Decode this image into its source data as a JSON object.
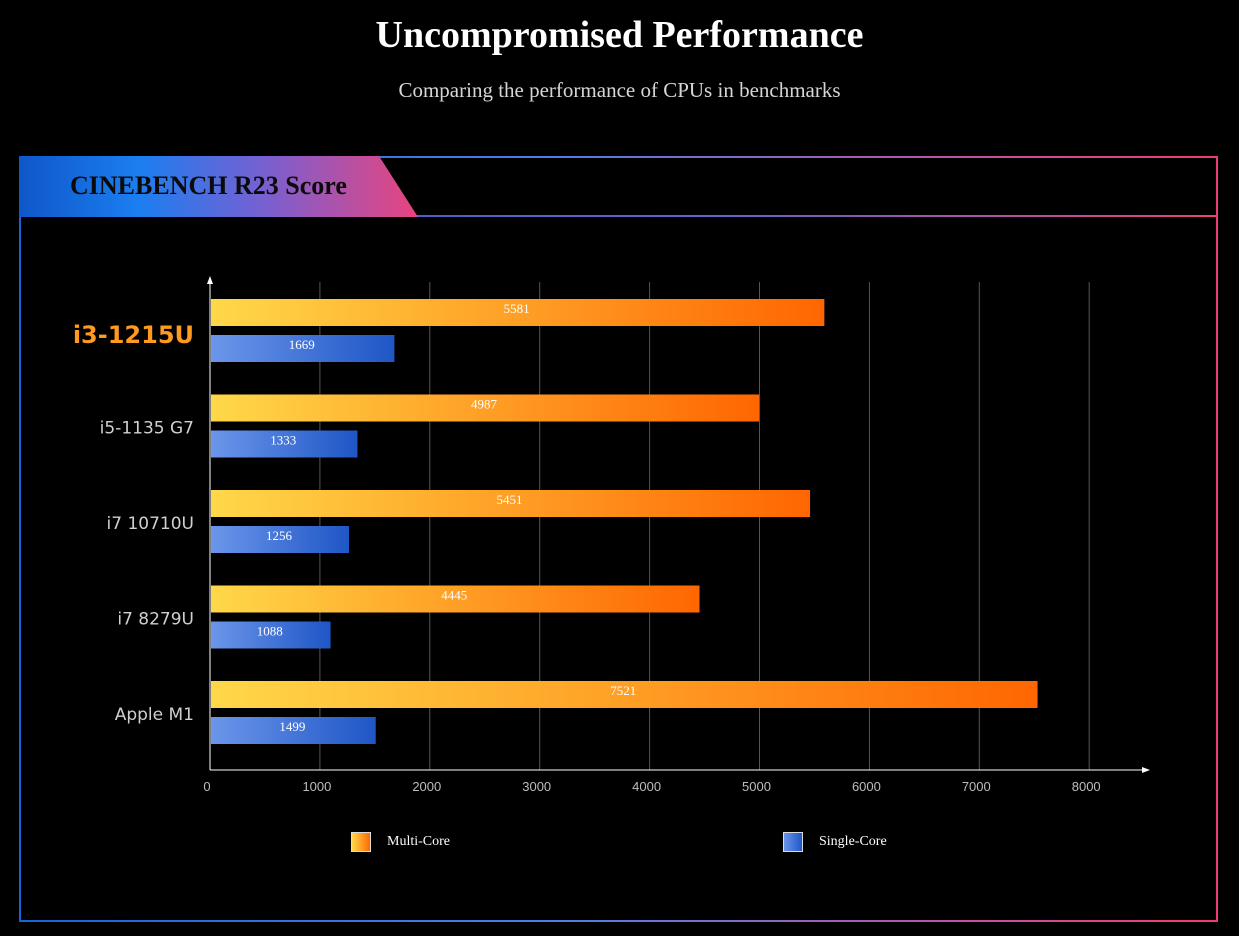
{
  "header": {
    "title": "Uncompromised Performance",
    "subtitle": "Comparing the performance of CPUs in benchmarks"
  },
  "section": {
    "title": "CINEBENCH R23 Score"
  },
  "chart_data": {
    "type": "bar",
    "orientation": "horizontal",
    "title": "CINEBENCH R23 Score",
    "categories": [
      "i3-1215U",
      "i5-1135 G7",
      "i7 10710U",
      "i7 8279U",
      "Apple M1"
    ],
    "highlight_category": "i3-1215U",
    "series": [
      {
        "name": "Multi-Core",
        "values": [
          5581,
          4987,
          5451,
          4445,
          7521
        ],
        "color_start": "#ffd84a",
        "color_end": "#ff6600"
      },
      {
        "name": "Single-Core",
        "values": [
          1669,
          1333,
          1256,
          1088,
          1499
        ],
        "color_start": "#6b96ea",
        "color_end": "#1f56c6"
      }
    ],
    "xlim": [
      0,
      8000
    ],
    "xticks": [
      0,
      1000,
      2000,
      3000,
      4000,
      5000,
      6000,
      7000,
      8000
    ],
    "grid": true,
    "legend_position": "bottom",
    "colors": {
      "highlight_label": "#ff9a1f",
      "label": "#d0d0d0",
      "tick": "#bdbdbd",
      "grid": "#555555",
      "axis": "#ffffff"
    }
  },
  "legend": [
    {
      "label": "Multi-Core"
    },
    {
      "label": "Single-Core"
    }
  ]
}
